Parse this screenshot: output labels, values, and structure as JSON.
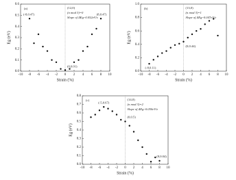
{
  "chart_data": [
    {
      "type": "scatter",
      "panel_label": "(a)",
      "tube": "(12,0)",
      "family": "(n mod 3)=0",
      "slope": "Slope of ΔEg~0.052eV/ε",
      "xlabel": "Strain (%)",
      "ylabel": "Eg (eV)",
      "x": [
        -8,
        -7,
        -6,
        -5,
        -4,
        -3,
        -2,
        -1,
        0,
        1,
        2,
        3,
        4,
        5,
        6,
        7,
        8
      ],
      "series": [
        {
          "color": "#111111",
          "values": [
            0.47,
            0.25,
            0.33,
            0.22,
            0.18,
            0.1,
            0.08,
            0.02,
            0.01,
            0.02,
            0.08,
            0.1,
            0.18,
            0.22,
            0.33,
            0.38,
            0.47
          ]
        }
      ],
      "point_labels": [
        "(-8,0.47)",
        "(8,0.47)",
        "(0,0.01)"
      ],
      "xlim": [
        -10,
        10
      ],
      "xticks": [
        -10,
        -8,
        -6,
        -4,
        -2,
        0,
        2,
        4,
        6,
        8,
        10
      ],
      "ylim": [
        0,
        0.6
      ],
      "yticks": [
        {
          "value": 0,
          "label": "0.0"
        },
        0.1,
        0.2,
        0.3,
        0.4,
        0.5,
        0.6
      ]
    },
    {
      "type": "scatter",
      "panel_label": "(b)",
      "tube": "(13,0)",
      "family": "(n mod 3)=1",
      "slope": "Slope of ΔEg~0.047eV/ε",
      "xlabel": "Strain (%)",
      "ylabel": "Eg (eV)",
      "x": [
        -8,
        -7,
        -6,
        -5,
        -4,
        -3,
        -2,
        -1,
        0,
        1,
        2,
        3,
        4,
        5,
        6,
        7,
        8
      ],
      "series": [
        {
          "color": "#111111",
          "values": [
            0.11,
            0.17,
            0.22,
            0.27,
            0.3,
            0.35,
            0.39,
            0.41,
            0.44,
            0.5,
            0.55,
            0.6,
            0.63,
            0.7,
            0.75,
            0.78,
            0.53
          ]
        }
      ],
      "point_labels": [
        "(-8,0.11)",
        "(0,0.44)"
      ],
      "xlim": [
        -10,
        10
      ],
      "xticks": [
        -10,
        -8,
        -6,
        -4,
        -2,
        0,
        2,
        4,
        6,
        8,
        10
      ],
      "ylim": [
        0,
        1
      ],
      "yticks": [
        {
          "value": 0,
          "label": "0.0"
        },
        0.2,
        0.4,
        0.6,
        0.8,
        {
          "value": 1,
          "label": "1.0"
        }
      ]
    },
    {
      "type": "scatter",
      "panel_label": "(c)",
      "tube": "(14,0)",
      "family": "(n mod 3)=2",
      "slope": "Slope of ΔEg~0.050eV/ε",
      "xlabel": "Strain (%)",
      "ylabel": "Eg (eV)",
      "x": [
        -8,
        -7,
        -6,
        -5,
        -4,
        -3,
        -2,
        -1,
        0,
        1,
        2,
        3,
        4,
        5,
        6,
        7,
        8
      ],
      "series": [
        {
          "color": "#111111",
          "values": [
            0.55,
            0.58,
            0.63,
            0.67,
            0.65,
            0.62,
            0.58,
            0.52,
            0.5,
            0.45,
            0.38,
            0.28,
            0.2,
            0.12,
            0.03,
            0.08,
            0.04
          ]
        }
      ],
      "point_labels": [
        "(-5,0.67)",
        "(0,0.5)",
        "(8,0.04)"
      ],
      "xlim": [
        -10,
        10
      ],
      "xticks": [
        -10,
        -8,
        -6,
        -4,
        -2,
        0,
        2,
        4,
        6,
        8,
        10
      ],
      "ylim": [
        0,
        0.8
      ],
      "yticks": [
        {
          "value": 0,
          "label": "0.0"
        },
        0.1,
        0.2,
        0.3,
        0.4,
        0.5,
        0.6,
        0.7,
        0.8
      ]
    }
  ]
}
